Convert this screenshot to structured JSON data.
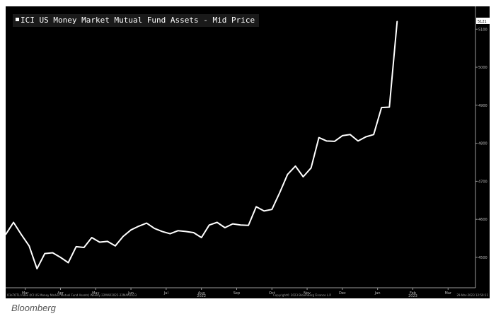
{
  "chart_data": {
    "type": "line",
    "title": "ICI US Money Market Mutual Fund Assets - Mid Price",
    "series": [
      {
        "name": "ICI US Money Market Mutual Fund Assets - Mid Price",
        "color": "#ffffff",
        "values": [
          4560,
          4592,
          4560,
          4530,
          4470,
          4510,
          4512,
          4500,
          4486,
          4528,
          4526,
          4552,
          4540,
          4542,
          4530,
          4555,
          4572,
          4582,
          4590,
          4576,
          4568,
          4562,
          4570,
          4568,
          4565,
          4552,
          4585,
          4592,
          4578,
          4588,
          4585,
          4584,
          4633,
          4622,
          4626,
          4670,
          4718,
          4740,
          4712,
          4735,
          4815,
          4806,
          4805,
          4820,
          4823,
          4806,
          4817,
          4823,
          4894,
          4895,
          5121
        ]
      }
    ],
    "ylim": [
      4420,
      5160
    ],
    "yticks": [
      4500,
      4600,
      4700,
      4800,
      4900,
      5000,
      5100
    ],
    "month_labels": [
      "Mar",
      "Apr",
      "May",
      "Jun",
      "Jul",
      "Aug",
      "Sep",
      "Oct",
      "Nov",
      "Dec",
      "Jan",
      "Feb",
      "Mar"
    ],
    "month_positions": [
      2.5,
      7,
      11.5,
      16,
      20.5,
      25,
      29.5,
      34,
      38.5,
      43,
      47.5,
      52,
      56.5
    ],
    "year_labels": [
      {
        "label": "2022",
        "pos": 25
      },
      {
        "label": "2023",
        "pos": 52
      }
    ],
    "x_count": 60,
    "last_value_label": "5121",
    "footer_left": "ICIeTOTL Index (ICI US Money Market Mutual Fund Assets) Weekly 22MAR2022-22MAR2023",
    "footer_center": "Copyright© 2023 Bloomberg Finance L.P.",
    "footer_right": "29-Mar-2023 12:59:11"
  },
  "legend": {
    "label": "ICI US Money Market Mutual Fund Assets - Mid Price"
  },
  "source": "Bloomberg"
}
